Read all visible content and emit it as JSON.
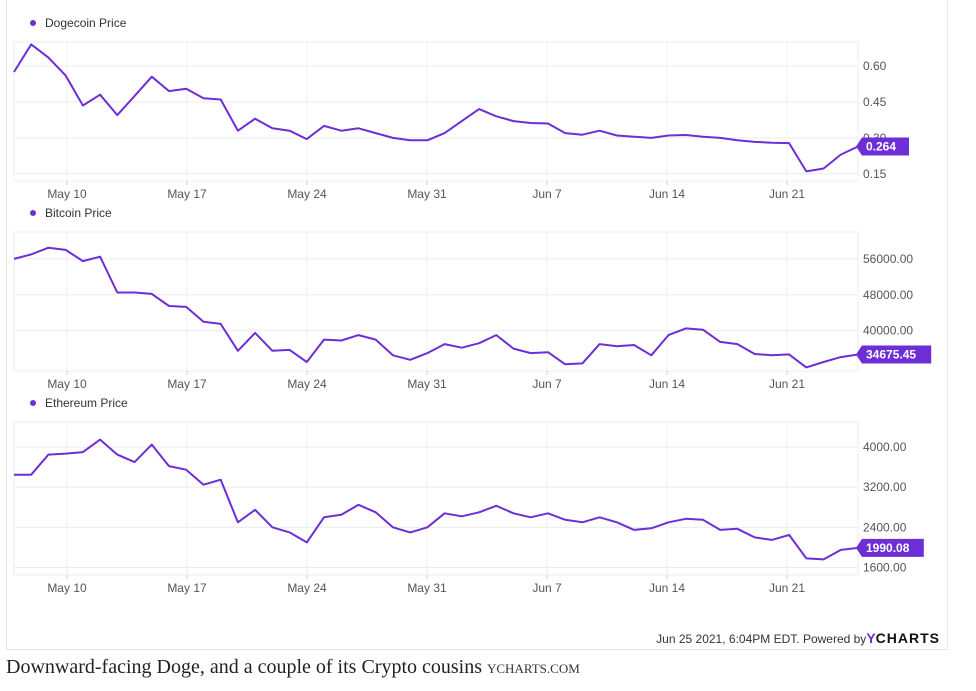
{
  "chart_data": [
    {
      "type": "line",
      "title": "Dogecoin Price",
      "color": "#6d2ed6",
      "x_labels": [
        "May 10",
        "May 17",
        "May 24",
        "May 31",
        "Jun 7",
        "Jun 14",
        "Jun 21"
      ],
      "y_ticks": [
        "0.60",
        "0.45",
        "0.30",
        "0.15"
      ],
      "y_range": [
        0.12,
        0.7
      ],
      "current": "0.264",
      "values": [
        0.575,
        0.69,
        0.635,
        0.56,
        0.435,
        0.48,
        0.395,
        0.475,
        0.555,
        0.495,
        0.505,
        0.465,
        0.46,
        0.33,
        0.38,
        0.34,
        0.33,
        0.295,
        0.35,
        0.33,
        0.34,
        0.32,
        0.3,
        0.29,
        0.29,
        0.32,
        0.37,
        0.42,
        0.39,
        0.37,
        0.362,
        0.36,
        0.32,
        0.313,
        0.33,
        0.31,
        0.305,
        0.3,
        0.31,
        0.312,
        0.305,
        0.3,
        0.29,
        0.283,
        0.28,
        0.278,
        0.16,
        0.172,
        0.23,
        0.264
      ]
    },
    {
      "type": "line",
      "title": "Bitcoin Price",
      "color": "#6d2ed6",
      "x_labels": [
        "May 10",
        "May 17",
        "May 24",
        "May 31",
        "Jun 7",
        "Jun 14",
        "Jun 21"
      ],
      "y_ticks": [
        "56000.00",
        "48000.00",
        "40000.00"
      ],
      "y_range": [
        31000,
        62000
      ],
      "current": "34675.45",
      "values": [
        56000,
        57000,
        58500,
        58000,
        55500,
        56500,
        48500,
        48500,
        48200,
        45500,
        45300,
        42000,
        41500,
        35500,
        39500,
        35500,
        35700,
        33000,
        38000,
        37800,
        39000,
        38000,
        34500,
        33500,
        35000,
        37000,
        36200,
        37200,
        39000,
        36000,
        35000,
        35200,
        32500,
        32700,
        37000,
        36500,
        36800,
        34500,
        39000,
        40500,
        40200,
        37500,
        37000,
        34800,
        34500,
        34700,
        31800,
        33000,
        34100,
        34675
      ]
    },
    {
      "type": "line",
      "title": "Ethereum Price",
      "color": "#6d2ed6",
      "x_labels": [
        "May 10",
        "May 17",
        "May 24",
        "May 31",
        "Jun 7",
        "Jun 14",
        "Jun 21"
      ],
      "y_ticks": [
        "4000.00",
        "3200.00",
        "2400.00",
        "1600.00"
      ],
      "y_range": [
        1450,
        4500
      ],
      "current": "1990.08",
      "values": [
        3450,
        3450,
        3850,
        3870,
        3900,
        4150,
        3850,
        3700,
        4050,
        3620,
        3550,
        3250,
        3350,
        2500,
        2750,
        2400,
        2300,
        2100,
        2600,
        2650,
        2850,
        2700,
        2400,
        2300,
        2400,
        2680,
        2620,
        2700,
        2830,
        2680,
        2600,
        2680,
        2550,
        2500,
        2600,
        2500,
        2350,
        2380,
        2500,
        2570,
        2550,
        2350,
        2370,
        2200,
        2150,
        2250,
        1780,
        1760,
        1950,
        1990
      ]
    }
  ],
  "footer": {
    "timestamp": "Jun 25 2021, 6:04PM EDT.",
    "powered": "Powered by",
    "brand_y": "Y",
    "brand_rest": "CHARTS"
  },
  "caption": {
    "text": "Downward-facing Doge, and a couple of its Crypto cousins",
    "credit": "YCHARTS.COM"
  }
}
